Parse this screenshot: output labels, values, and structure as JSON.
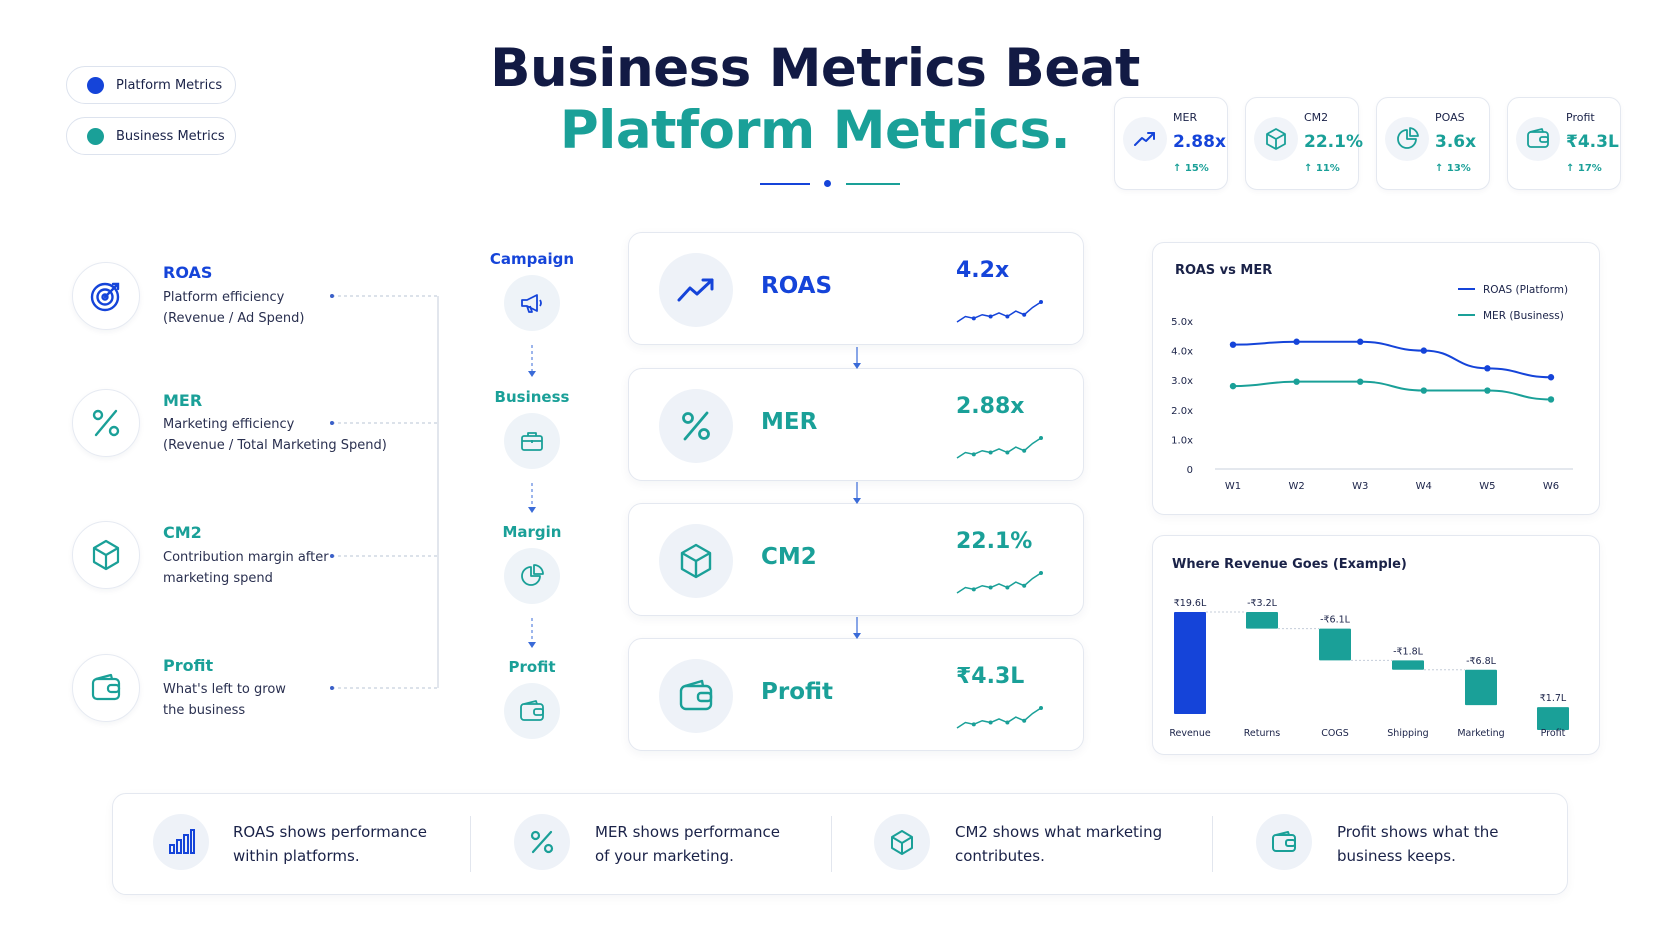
{
  "colors": {
    "blue": "#1544d9",
    "teal": "#1aa098",
    "navy": "#121a44"
  },
  "legend": [
    {
      "label": "Platform Metrics",
      "color": "#1544d9"
    },
    {
      "label": "Business Metrics",
      "color": "#1aa098"
    }
  ],
  "title": {
    "line1": "Business Metrics Beat",
    "line2": "Platform Metrics."
  },
  "kpis": [
    {
      "label": "MER",
      "value": "2.88x",
      "change": "↑ 15%",
      "icon": "trend-up-icon"
    },
    {
      "label": "CM2",
      "value": "22.1%",
      "change": "↑ 11%",
      "icon": "cube-icon"
    },
    {
      "label": "POAS",
      "value": "3.6x",
      "change": "↑ 13%",
      "icon": "pie-icon"
    },
    {
      "label": "Profit",
      "value": "₹4.3L",
      "change": "↑ 17%",
      "icon": "wallet-icon"
    }
  ],
  "definitions": [
    {
      "name": "ROAS",
      "line1": "Platform efficiency",
      "line2": "(Revenue / Ad Spend)",
      "icon": "target-icon"
    },
    {
      "name": "MER",
      "line1": "Marketing efficiency",
      "line2": "(Revenue / Total Marketing Spend)",
      "icon": "percent-icon"
    },
    {
      "name": "CM2",
      "line1": "Contribution margin after",
      "line2": "marketing spend",
      "icon": "cube-icon"
    },
    {
      "name": "Profit",
      "line1": "What's left to grow",
      "line2": "the business",
      "icon": "wallet-icon"
    }
  ],
  "flow": [
    {
      "label": "Campaign",
      "icon": "megaphone-icon"
    },
    {
      "label": "Business",
      "icon": "briefcase-icon"
    },
    {
      "label": "Margin",
      "icon": "pie-icon"
    },
    {
      "label": "Profit",
      "icon": "wallet-icon"
    }
  ],
  "cards": [
    {
      "name": "ROAS",
      "value": "4.2x",
      "icon": "trend-up-icon",
      "spark": [
        3,
        6,
        5,
        7,
        6,
        8,
        6,
        9,
        7,
        11,
        14
      ]
    },
    {
      "name": "MER",
      "value": "2.88x",
      "icon": "percent-icon",
      "spark": [
        3,
        6,
        5,
        7,
        6,
        8,
        6,
        9,
        7,
        11,
        14
      ]
    },
    {
      "name": "CM2",
      "value": "22.1%",
      "icon": "cube-icon",
      "spark": [
        3,
        6,
        5,
        7,
        6,
        8,
        6,
        9,
        7,
        11,
        14
      ]
    },
    {
      "name": "Profit",
      "value": "₹4.3L",
      "icon": "wallet-icon",
      "spark": [
        3,
        6,
        5,
        7,
        6,
        8,
        6,
        9,
        7,
        11,
        14
      ]
    }
  ],
  "bottom": [
    {
      "line1": "ROAS shows performance",
      "line2": "within platforms.",
      "icon": "bar-chart-icon"
    },
    {
      "line1": "MER shows performance",
      "line2": "of your marketing.",
      "icon": "percent-icon"
    },
    {
      "line1": "CM2 shows what marketing",
      "line2": "contributes.",
      "icon": "cube-icon"
    },
    {
      "line1": "Profit shows what the",
      "line2": "business keeps.",
      "icon": "wallet-icon"
    }
  ],
  "chart_data": [
    {
      "type": "line",
      "title": "ROAS vs MER",
      "x": [
        "W1",
        "W2",
        "W3",
        "W4",
        "W5",
        "W6"
      ],
      "yticks": [
        "0",
        "1.0x",
        "2.0x",
        "3.0x",
        "4.0x",
        "5.0x"
      ],
      "ylim": [
        0,
        5
      ],
      "legend_position": "top-right",
      "series": [
        {
          "name": "ROAS (Platform)",
          "color": "#1544d9",
          "values": [
            4.2,
            4.3,
            4.3,
            4.0,
            3.4,
            3.1
          ]
        },
        {
          "name": "MER (Business)",
          "color": "#1aa098",
          "values": [
            2.8,
            2.95,
            2.95,
            2.65,
            2.65,
            2.35
          ]
        }
      ]
    },
    {
      "type": "bar",
      "subtype": "waterfall",
      "title": "Where Revenue Goes (Example)",
      "categories": [
        "Revenue",
        "Returns",
        "COGS",
        "Shipping",
        "Marketing",
        "Profit"
      ],
      "values": [
        19.6,
        -3.2,
        -6.1,
        -1.8,
        -6.8,
        1.7
      ],
      "labels": [
        "₹19.6L",
        "-₹3.2L",
        "-₹6.1L",
        "-₹1.8L",
        "-₹6.8L",
        "₹1.7L"
      ]
    }
  ]
}
